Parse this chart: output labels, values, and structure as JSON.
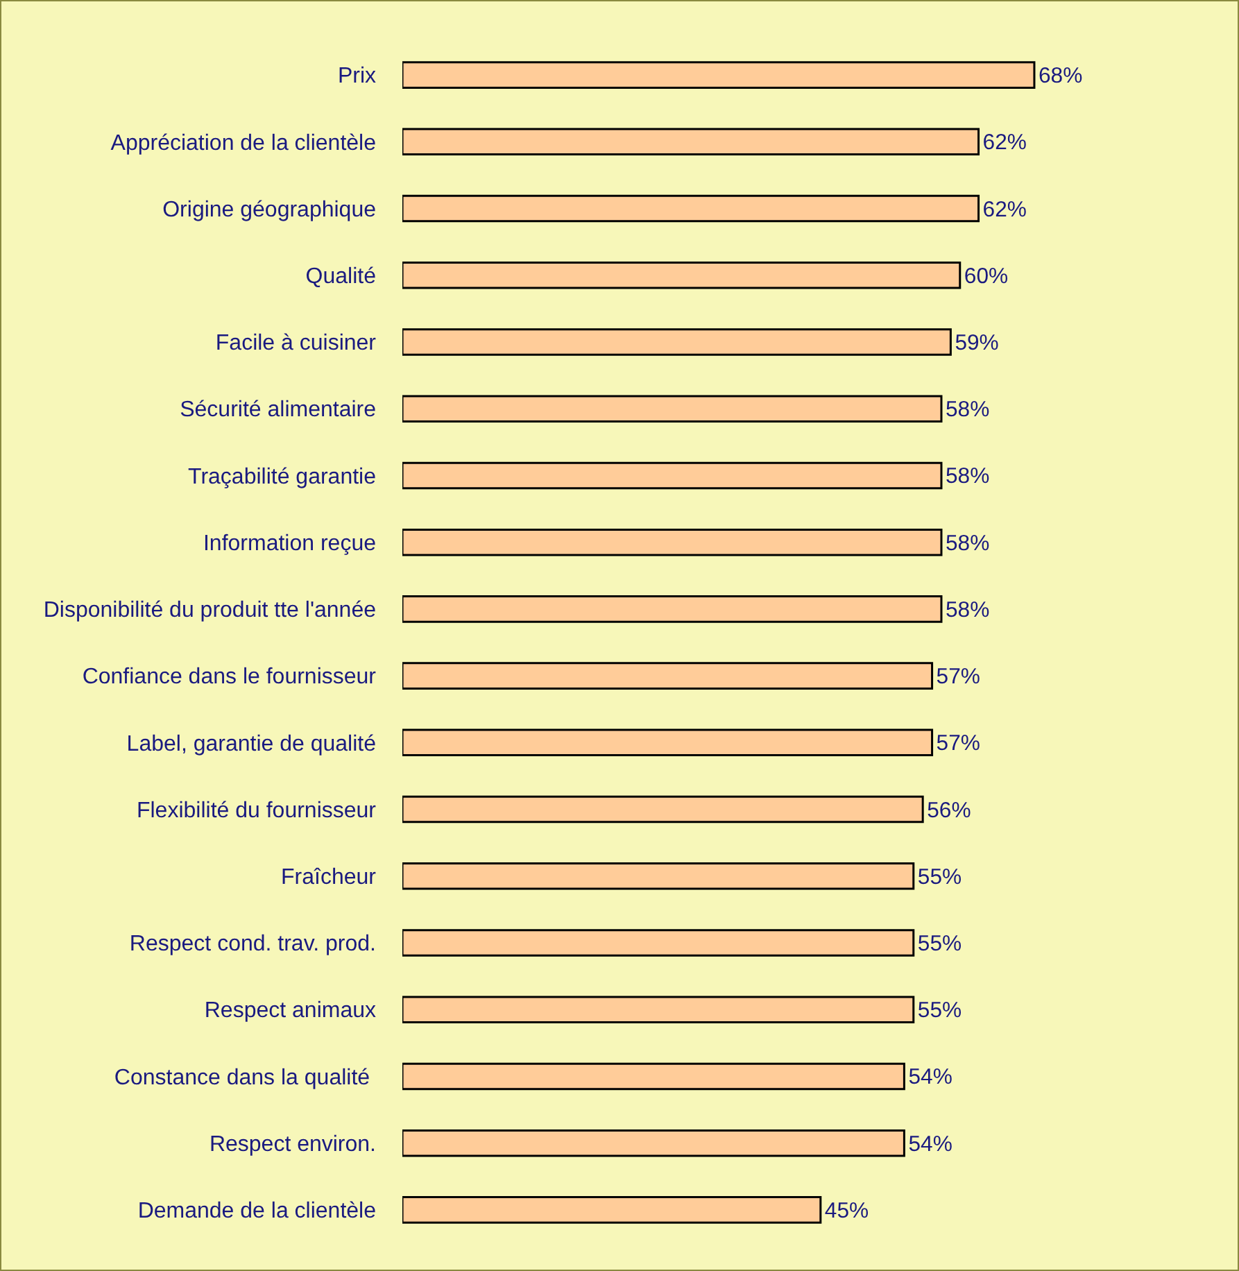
{
  "chart_data": {
    "type": "bar",
    "orientation": "horizontal",
    "categories": [
      "Prix",
      "Appréciation de la clientèle",
      "Origine géographique",
      "Qualité",
      "Facile à cuisiner",
      "Sécurité alimentaire",
      "Traçabilité garantie",
      "Information reçue",
      "Disponibilité du produit tte l'année",
      "Confiance dans le fournisseur",
      "Label, garantie de qualité",
      "Flexibilité du fournisseur",
      "Fraîcheur",
      "Respect cond. trav. prod.",
      "Respect animaux",
      "Constance dans la qualité ",
      "Respect environ.",
      "Demande de la clientèle"
    ],
    "values": [
      68,
      62,
      62,
      60,
      59,
      58,
      58,
      58,
      58,
      57,
      57,
      56,
      55,
      55,
      55,
      54,
      54,
      45
    ],
    "value_labels": [
      "68%",
      "62%",
      "62%",
      "60%",
      "59%",
      "58%",
      "58%",
      "58%",
      "58%",
      "57%",
      "57%",
      "56%",
      "55%",
      "55%",
      "55%",
      "54%",
      "54%",
      "45%"
    ],
    "color": "#ffcc99",
    "grid": false,
    "legend": false
  }
}
